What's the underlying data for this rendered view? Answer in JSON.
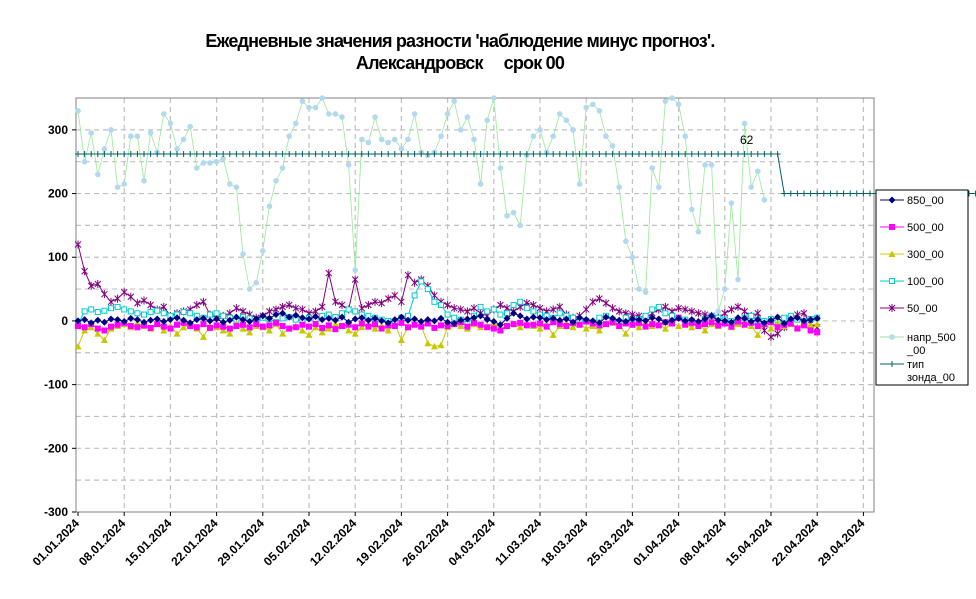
{
  "chart_data": {
    "type": "line",
    "title": "Ежедневные значения разности 'наблюдение минус прогноз'.",
    "subtitle": "Александровск     срок 00",
    "ylim": [
      -300,
      350
    ],
    "yticks": [
      -300,
      -200,
      -100,
      0,
      100,
      200,
      300
    ],
    "xticks": [
      "01.01.2024",
      "08.01.2024",
      "15.01.2024",
      "22.01.2024",
      "29.01.2024",
      "05.02.2024",
      "12.02.2024",
      "19.02.2024",
      "26.02.2024",
      "04.03.2024",
      "11.03.2024",
      "18.03.2024",
      "25.03.2024",
      "01.04.2024",
      "08.04.2024",
      "15.04.2024",
      "22.04.2024",
      "29.04.2024"
    ],
    "x_start": "01.01.2024",
    "x_end": "30.04.2024",
    "grid": true,
    "legend_position": "right",
    "annotation": {
      "text": "62",
      "x": "10.04.2024",
      "y": 262
    },
    "series": [
      {
        "name": "850_00",
        "color": "#000080",
        "marker": "diamond",
        "values": [
          0,
          2,
          -3,
          1,
          -2,
          3,
          2,
          -1,
          4,
          2,
          -2,
          1,
          3,
          -1,
          2,
          5,
          1,
          -3,
          2,
          4,
          0,
          3,
          -2,
          1,
          6,
          2,
          -1,
          3,
          8,
          4,
          10,
          12,
          6,
          9,
          5,
          3,
          7,
          2,
          4,
          1,
          6,
          -2,
          3,
          5,
          1,
          4,
          0,
          -3,
          2,
          6,
          1,
          3,
          -1,
          2,
          0,
          4,
          -2,
          -4,
          1,
          3,
          5,
          8,
          2,
          -1,
          -6,
          4,
          12,
          8,
          3,
          6,
          5,
          2,
          4,
          1,
          3,
          -2,
          5,
          2,
          0,
          -3,
          6,
          4,
          1,
          -1,
          3,
          2,
          0,
          5,
          3,
          -2,
          1,
          4,
          0,
          2,
          -1,
          3,
          8,
          1,
          0,
          -2,
          5,
          4,
          -1,
          2,
          -3,
          1,
          6,
          -4,
          3,
          5,
          0,
          2,
          4
        ]
      },
      {
        "name": "500_00",
        "color": "#FF00FF",
        "marker": "square",
        "values": [
          -8,
          -10,
          -5,
          -12,
          -15,
          -9,
          -6,
          -3,
          -8,
          -10,
          -7,
          -11,
          -5,
          -9,
          -12,
          -6,
          -3,
          -8,
          -10,
          -5,
          -11,
          -7,
          -9,
          -12,
          -8,
          -6,
          -10,
          -5,
          -9,
          -7,
          -3,
          -8,
          -12,
          -10,
          -6,
          -9,
          -5,
          -11,
          -7,
          -13,
          -8,
          -6,
          -10,
          -4,
          -9,
          -5,
          -12,
          -7,
          -8,
          -3,
          -10,
          -6,
          -9,
          -4,
          -11,
          -7,
          -8,
          -5,
          -2,
          -9,
          -3,
          -6,
          -10,
          -12,
          -15,
          -8,
          -5,
          -3,
          -7,
          -6,
          -4,
          -9,
          -2,
          -5,
          -8,
          -3,
          -6,
          -1,
          -4,
          -7,
          -5,
          -2,
          -8,
          -4,
          -6,
          -3,
          -9,
          -5,
          -7,
          -2,
          -4,
          5,
          -6,
          -3,
          -8,
          -5,
          -2,
          -7,
          -4,
          -9,
          -1,
          -6,
          -3,
          -8,
          -5,
          -2,
          -10,
          -6,
          -4,
          -12,
          -7,
          -15,
          -18
        ]
      },
      {
        "name": "300_00",
        "color": "#C8C800",
        "marker": "triangle",
        "values": [
          -40,
          -15,
          -10,
          -20,
          -30,
          -12,
          -8,
          -5,
          -10,
          -3,
          -8,
          -12,
          -5,
          -15,
          -8,
          -20,
          -10,
          -5,
          -12,
          -25,
          -8,
          -10,
          -15,
          -20,
          -5,
          -12,
          -18,
          -8,
          -10,
          -15,
          -5,
          -20,
          -12,
          -8,
          -15,
          -22,
          -10,
          -18,
          -12,
          -5,
          -8,
          -15,
          -20,
          -10,
          -5,
          -12,
          -8,
          -15,
          -5,
          -30,
          -10,
          -5,
          -8,
          -35,
          -40,
          -38,
          -10,
          -5,
          -8,
          -12,
          -5,
          -10,
          -8,
          -3,
          -12,
          -8,
          -5,
          -10,
          -3,
          -8,
          -12,
          -5,
          -22,
          -8,
          -3,
          -10,
          -5,
          -12,
          -8,
          -15,
          -5,
          -3,
          -8,
          -20,
          -5,
          -10,
          -3,
          -8,
          -5,
          -12,
          -3,
          -8,
          -5,
          -10,
          -3,
          -15,
          -5,
          -8,
          -2,
          -10,
          -5,
          -3,
          -8,
          -22,
          -5,
          -12,
          -3,
          -8,
          -5,
          -10,
          -3,
          -6,
          -5
        ]
      },
      {
        "name": "100_00",
        "color": "#00CCCC",
        "marker": "square-open",
        "values": [
          -5,
          15,
          18,
          14,
          16,
          20,
          22,
          18,
          15,
          12,
          10,
          14,
          16,
          12,
          8,
          10,
          14,
          12,
          8,
          5,
          10,
          12,
          8,
          5,
          2,
          6,
          4,
          0,
          5,
          3,
          -2,
          4,
          6,
          2,
          0,
          5,
          3,
          8,
          10,
          6,
          12,
          18,
          15,
          10,
          8,
          5,
          2,
          0,
          -3,
          5,
          8,
          40,
          62,
          50,
          30,
          25,
          10,
          5,
          2,
          -5,
          8,
          22,
          15,
          18,
          10,
          12,
          25,
          30,
          20,
          15,
          10,
          8,
          5,
          12,
          8,
          5,
          2,
          0,
          -3,
          5,
          8,
          2,
          -2,
          5,
          0,
          3,
          8,
          18,
          22,
          12,
          8,
          5,
          2,
          0,
          -5,
          3,
          8,
          5,
          2,
          0,
          -3,
          5,
          8,
          2,
          0,
          3,
          -2,
          5,
          8,
          2,
          0,
          3,
          5
        ]
      },
      {
        "name": "50_00",
        "color": "#800080",
        "marker": "star",
        "values": [
          120,
          78,
          55,
          58,
          42,
          30,
          35,
          45,
          38,
          28,
          32,
          25,
          18,
          22,
          8,
          12,
          15,
          18,
          25,
          30,
          10,
          5,
          8,
          12,
          20,
          15,
          10,
          5,
          8,
          15,
          18,
          22,
          25,
          20,
          18,
          12,
          15,
          22,
          75,
          30,
          25,
          18,
          65,
          20,
          25,
          30,
          28,
          35,
          40,
          30,
          72,
          60,
          65,
          55,
          40,
          30,
          25,
          20,
          18,
          15,
          20,
          12,
          8,
          18,
          25,
          20,
          15,
          22,
          28,
          25,
          20,
          15,
          18,
          22,
          10,
          5,
          8,
          18,
          30,
          35,
          28,
          20,
          15,
          12,
          10,
          8,
          5,
          12,
          18,
          22,
          15,
          20,
          18,
          15,
          12,
          10,
          8,
          5,
          12,
          18,
          22,
          15,
          8,
          12,
          -15,
          -25,
          -20,
          -10,
          5,
          10,
          12,
          -5,
          -10
        ]
      },
      {
        "name": "напр_500_00",
        "color": "#99E899",
        "marker_color": "#B3D9EE",
        "marker": "circle",
        "values": [
          330,
          250,
          295,
          230,
          270,
          300,
          210,
          215,
          290,
          290,
          220,
          295,
          265,
          325,
          310,
          270,
          285,
          305,
          240,
          248,
          248,
          250,
          255,
          215,
          210,
          105,
          50,
          60,
          110,
          180,
          220,
          240,
          290,
          310,
          345,
          335,
          335,
          350,
          325,
          325,
          320,
          245,
          80,
          285,
          280,
          320,
          285,
          280,
          285,
          270,
          285,
          325,
          265,
          260,
          265,
          290,
          325,
          345,
          300,
          320,
          285,
          215,
          315,
          350,
          240,
          165,
          170,
          150,
          260,
          290,
          300,
          265,
          290,
          325,
          315,
          300,
          215,
          335,
          340,
          330,
          290,
          275,
          210,
          125,
          100,
          50,
          45,
          240,
          210,
          345,
          350,
          340,
          290,
          175,
          140,
          245,
          245,
          15,
          50,
          185,
          65,
          310,
          210,
          235,
          190
        ]
      },
      {
        "name": "тип зонда_00",
        "color": "#006060",
        "marker": "plus",
        "values": [
          262,
          262,
          262,
          262,
          262,
          262,
          262,
          262,
          262,
          262,
          262,
          262,
          262,
          262,
          262,
          262,
          262,
          262,
          262,
          262,
          262,
          262,
          262,
          262,
          262,
          262,
          262,
          262,
          262,
          262,
          262,
          262,
          262,
          262,
          262,
          262,
          262,
          262,
          262,
          262,
          262,
          262,
          262,
          262,
          262,
          262,
          262,
          262,
          262,
          262,
          262,
          262,
          262,
          262,
          262,
          262,
          262,
          262,
          262,
          262,
          262,
          262,
          262,
          262,
          262,
          262,
          262,
          262,
          262,
          262,
          262,
          262,
          262,
          262,
          262,
          262,
          262,
          262,
          262,
          262,
          262,
          262,
          262,
          262,
          262,
          262,
          262,
          262,
          262,
          262,
          262,
          262,
          262,
          262,
          262,
          262,
          262,
          262,
          262,
          262,
          262,
          262,
          262,
          262,
          262,
          262,
          262,
          200,
          200,
          200,
          200,
          200,
          200,
          200,
          200,
          200,
          200,
          200,
          200,
          200,
          200,
          200,
          200,
          200,
          200,
          200,
          200,
          200,
          200,
          200,
          200,
          200,
          200,
          200,
          200,
          200,
          200,
          200,
          200,
          200,
          200,
          200,
          200,
          200,
          200,
          200,
          200,
          200,
          200,
          200,
          200
        ]
      }
    ]
  }
}
